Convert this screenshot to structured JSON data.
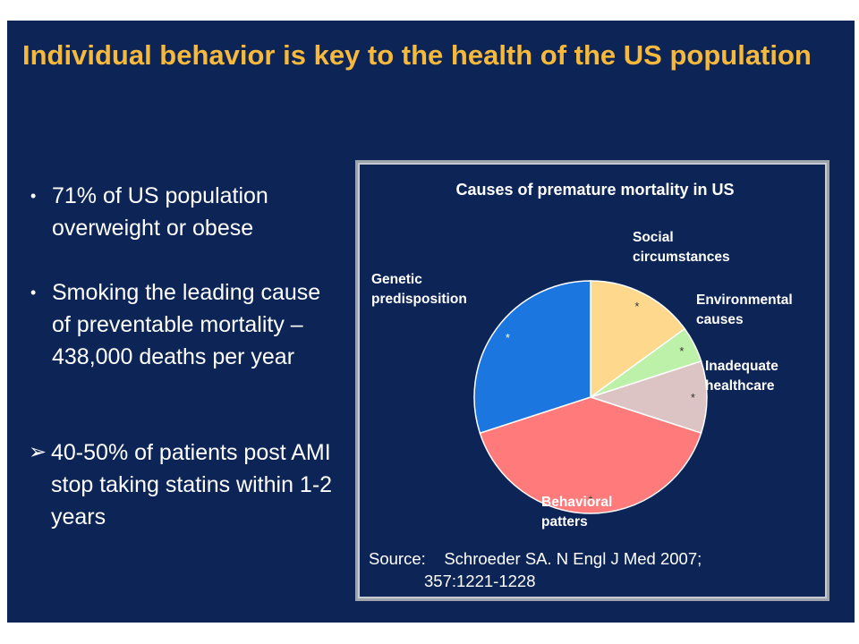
{
  "slide": {
    "title": "Individual behavior is key to the health of the US population",
    "bullets": [
      {
        "marker": "•",
        "text": "71% of US population overweight or obese"
      },
      {
        "marker": "•",
        "text": "Smoking the leading cause of preventable mortality – 438,000 deaths per year"
      },
      {
        "marker": "➢",
        "text": "40-50% of patients post AMI stop taking statins within 1-2 years"
      }
    ],
    "source_label": "Source:",
    "source_text_1": "Schroeder SA. N Engl J Med 2007;",
    "source_text_2": "357:1221-1228"
  },
  "chart_data": {
    "type": "pie",
    "title": "Causes of premature mortality in US",
    "slices": [
      {
        "name": "Social circumstances",
        "label_lines": [
          "Social",
          "circumstances"
        ],
        "value": 15,
        "color": "#fed88c",
        "marker": "*"
      },
      {
        "name": "Environmental causes",
        "label_lines": [
          "Environmental",
          "causes"
        ],
        "value": 5,
        "color": "#bdf0a8",
        "marker": "*"
      },
      {
        "name": "Inadequate healthcare",
        "label_lines": [
          "Inadequate",
          "healthcare"
        ],
        "value": 10,
        "color": "#dcc4c4",
        "marker": "*"
      },
      {
        "name": "Behavioral patters",
        "label_lines": [
          "Behavioral",
          "patters"
        ],
        "value": 40,
        "color": "#ff7b7b",
        "marker": "*"
      },
      {
        "name": "Genetic predisposition",
        "label_lines": [
          "Genetic",
          "predisposition"
        ],
        "value": 30,
        "color": "#1c76e0",
        "marker": "*"
      }
    ],
    "start_angle_deg": 0,
    "direction": "clockwise",
    "legend": "none"
  }
}
